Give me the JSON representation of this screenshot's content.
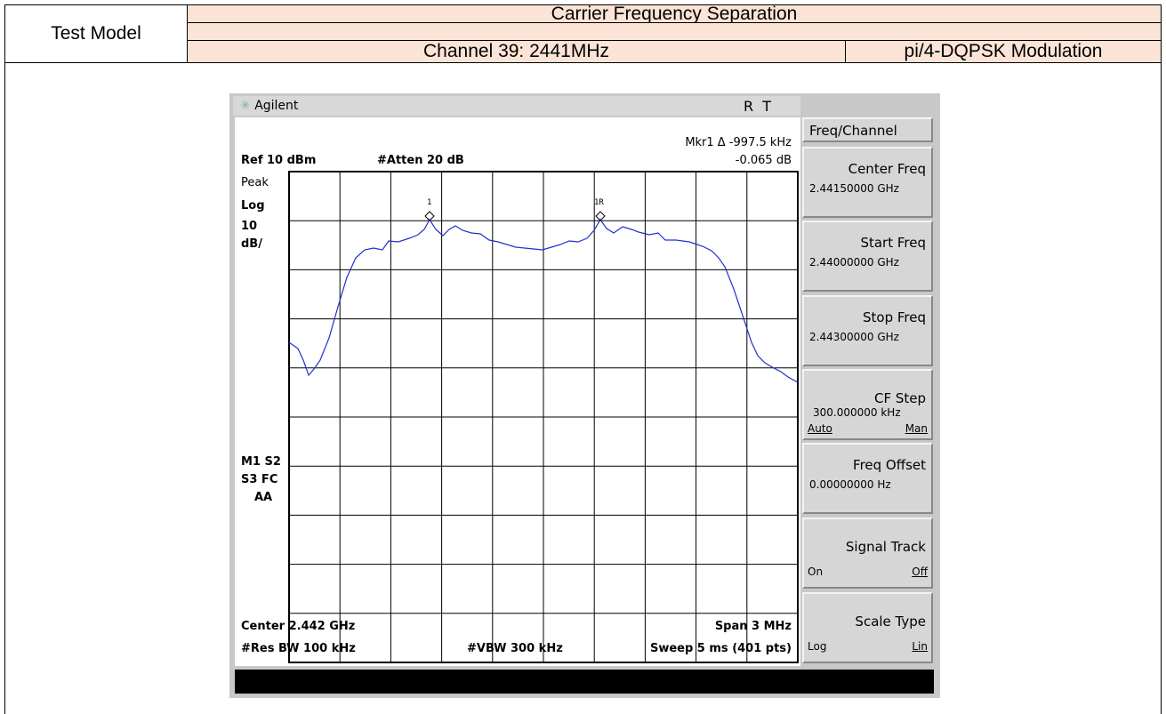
{
  "header": {
    "test_label": "Test Model",
    "title": "Carrier Frequency Separation",
    "channel": "Channel 39: 2441MHz",
    "modulation": "pi/4-DQPSK Modulation"
  },
  "analyzer": {
    "brand": "Agilent",
    "status": "R  T",
    "marker": "Mkr1 Δ -997.5 kHz",
    "marker_level": "-0.065 dB",
    "ref": "Ref 10 dBm",
    "atten": "#Atten 20 dB",
    "detector": "Peak",
    "scale": "Log",
    "scale_div": "10",
    "scale_unit": "dB/",
    "status_left": [
      "M1 S2",
      "S3 FC",
      "AA"
    ],
    "marker_labels": [
      "1",
      "1R"
    ],
    "center": "Center 2.442 GHz",
    "span": "Span 3 MHz",
    "rbw": "#Res BW 100 kHz",
    "vbw": "#VBW 300 kHz",
    "sweep": "Sweep 5 ms (401 pts)"
  },
  "softkeys": [
    {
      "title": "Freq/Channel"
    },
    {
      "title": "Center Freq",
      "sub": "2.44150000 GHz"
    },
    {
      "title": "Start Freq",
      "sub": "2.44000000 GHz"
    },
    {
      "title": "Stop Freq",
      "sub": "2.44300000 GHz"
    },
    {
      "title": "CF Step",
      "sub": "300.000000 kHz",
      "left": "Auto",
      "right": "Man"
    },
    {
      "title": "Freq Offset",
      "sub": "0.00000000  Hz"
    },
    {
      "title": "Signal Track",
      "left": "On",
      "right": "Off"
    },
    {
      "title": "Scale Type",
      "left": "Log",
      "right": "Lin"
    }
  ]
}
